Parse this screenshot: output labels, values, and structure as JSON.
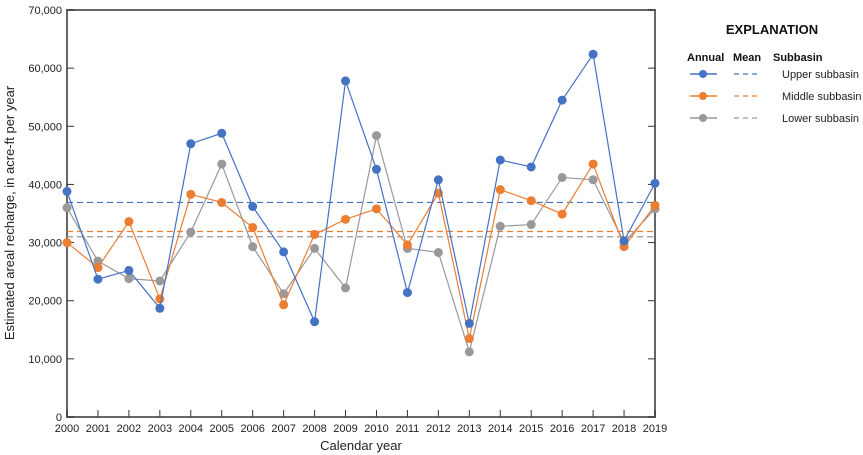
{
  "chart_data": {
    "type": "line",
    "title": "",
    "xlabel": "Calendar year",
    "ylabel": "Estimated areal recharge, in acre-ft per year",
    "ylim": [
      0,
      70000
    ],
    "yticks": [
      0,
      10000,
      20000,
      30000,
      40000,
      50000,
      60000,
      70000
    ],
    "ytick_labels": [
      "0",
      "10,000",
      "20,000",
      "30,000",
      "40,000",
      "50,000",
      "60,000",
      "70,000"
    ],
    "x": [
      2000,
      2001,
      2002,
      2003,
      2004,
      2005,
      2006,
      2007,
      2008,
      2009,
      2010,
      2011,
      2012,
      2013,
      2014,
      2015,
      2016,
      2017,
      2018,
      2019
    ],
    "series": [
      {
        "name": "Upper subbasin",
        "color": "#4472c4",
        "mean": 36900,
        "values": [
          38800,
          23700,
          25200,
          18700,
          47000,
          48800,
          36200,
          28400,
          16400,
          57800,
          42600,
          21400,
          40800,
          16100,
          44200,
          43000,
          54500,
          62400,
          30300,
          40200
        ]
      },
      {
        "name": "Middle subbasin",
        "color": "#ed7d31",
        "mean": 31900,
        "values": [
          30000,
          25700,
          33600,
          20300,
          38300,
          36900,
          32600,
          19300,
          31400,
          34000,
          35800,
          29600,
          38500,
          13500,
          39100,
          37200,
          34900,
          43500,
          29300,
          36400
        ]
      },
      {
        "name": "Lower subbasin",
        "color": "#999999",
        "mean": 31000,
        "values": [
          36000,
          26800,
          23800,
          23400,
          31800,
          43500,
          29300,
          21200,
          29000,
          22200,
          48400,
          29000,
          28300,
          11200,
          32800,
          33100,
          41200,
          40800,
          30000,
          35800
        ]
      }
    ],
    "legend": {
      "title": "EXPLANATION",
      "headers": [
        "Annual",
        "Mean",
        "Subbasin"
      ],
      "placement": "right"
    },
    "grid": false
  }
}
